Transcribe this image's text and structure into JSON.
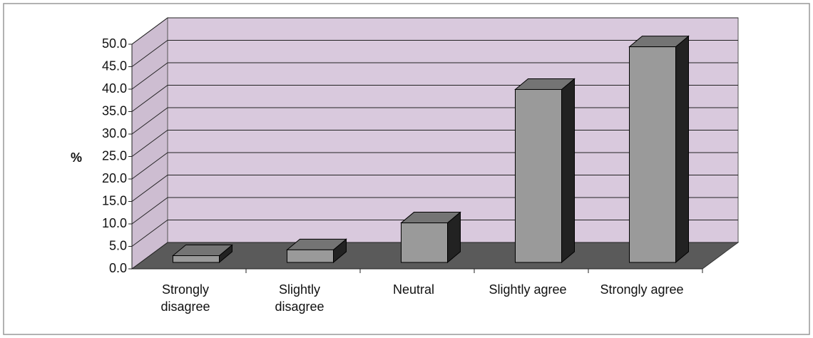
{
  "chart_data": {
    "type": "bar3d",
    "y_label": "%",
    "categories": [
      "Strongly disagree",
      "Slightly disagree",
      "Neutral",
      "Slightly agree",
      "Strongly agree"
    ],
    "values": [
      1.5,
      2.8,
      8.8,
      38.5,
      48
    ],
    "color": "#9a9a9a",
    "ylim": [
      0,
      50
    ],
    "yticks": [
      {
        "value": 0,
        "label": "0.0"
      },
      {
        "value": 5,
        "label": "5.0"
      },
      {
        "value": 10,
        "label": "10.0"
      },
      {
        "value": 15,
        "label": "15.0"
      },
      {
        "value": 20,
        "label": "20.0"
      },
      {
        "value": 25,
        "label": "25.0"
      },
      {
        "value": 30,
        "label": "30.0"
      },
      {
        "value": 35,
        "label": "35.0"
      },
      {
        "value": 40,
        "label": "40.0"
      },
      {
        "value": 45,
        "label": "45.0"
      },
      {
        "value": 50,
        "label": "50.0"
      }
    ],
    "grid": true
  }
}
